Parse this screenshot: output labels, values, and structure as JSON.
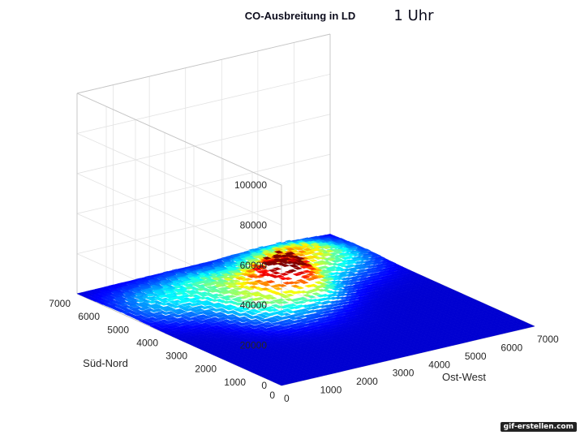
{
  "chart_data": {
    "type": "surface",
    "title": "CO-Ausbreitung in LD",
    "subtitle": "1 Uhr",
    "xlabel": "Ost-West",
    "ylabel": "Süd-Nord",
    "zlabel": "",
    "xlim": [
      0,
      7000
    ],
    "ylim": [
      0,
      7000
    ],
    "zlim": [
      0,
      100000
    ],
    "x_ticks": [
      0,
      1000,
      2000,
      3000,
      4000,
      5000,
      6000,
      7000
    ],
    "y_ticks": [
      0,
      1000,
      2000,
      3000,
      4000,
      5000,
      6000,
      7000
    ],
    "z_ticks": [
      0,
      20000,
      40000,
      60000,
      80000,
      100000
    ],
    "x_tick_labels": [
      "0",
      "1000",
      "2000",
      "3000",
      "4000",
      "5000",
      "6000",
      "7000"
    ],
    "y_tick_labels": [
      "0",
      "1000",
      "2000",
      "3000",
      "4000",
      "5000",
      "6000",
      "7000"
    ],
    "z_tick_labels": [
      "0",
      "20000",
      "40000",
      "60000",
      "80000",
      "100000"
    ],
    "grid": true,
    "colormap": "jet",
    "peak": {
      "x": 3900,
      "y": 4600,
      "z": 14000
    },
    "concentration_sources": [
      {
        "x": 3900,
        "y": 4600,
        "value": 14000
      },
      {
        "x": 4600,
        "y": 5600,
        "value": 6500
      },
      {
        "x": 2900,
        "y": 4200,
        "value": 5000
      },
      {
        "x": 5700,
        "y": 5900,
        "value": 4500
      },
      {
        "x": 2700,
        "y": 5600,
        "value": 3500
      },
      {
        "x": 1200,
        "y": 5400,
        "value": 2500
      }
    ]
  },
  "colors": {
    "low": "#00007f",
    "mid": "#4fb37a",
    "high": "#c07a1a",
    "peak": "#200a05"
  },
  "watermark": "gif-erstellen.com"
}
